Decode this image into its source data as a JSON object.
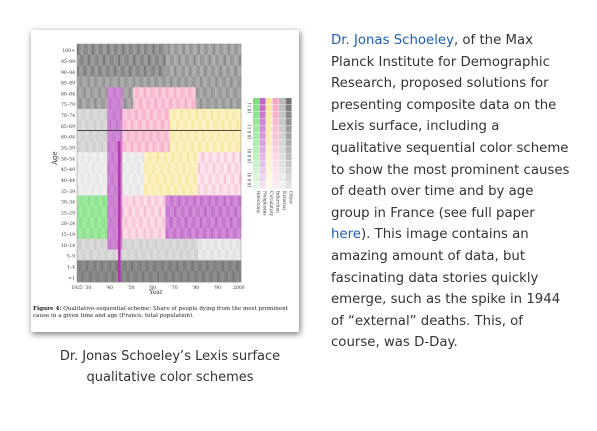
{
  "figure": {
    "age_labels": [
      "100+",
      "95–99",
      "90–94",
      "85–89",
      "80–84",
      "75–79",
      "70–74",
      "65–69",
      "60–64",
      "55–59",
      "50–54",
      "45–49",
      "40–44",
      "35–39",
      "30–34",
      "25–29",
      "20–24",
      "15–19",
      "10–14",
      "5–9",
      "1–4",
      "<1"
    ],
    "year_ticks": [
      "1925",
      "'30",
      "'40",
      "'50",
      "'60",
      "'70",
      "'80",
      "'90",
      "2000"
    ],
    "y_axis_title": "Age",
    "x_axis_title": "Year",
    "legend_ranges": [
      "[0.1]",
      "[0.0.1]",
      "[0.0.8]",
      "[0.0.4]"
    ],
    "legend_causes": [
      "Infections",
      "Neoplasms",
      "Circulatory",
      "Infarction",
      "External",
      "Other"
    ],
    "caption_bold": "Figure 4:",
    "caption_text": " Qualitative-sequential-scheme: Share of people dying from the most prominent cause in a given time and age (France, total population).",
    "cause_colors": {
      "infections": "#7ee07e",
      "neoplasms": "#c066c8",
      "circulatory": "#f7e79a",
      "infarction": "#f7a8c4",
      "external": "#bbbbbb",
      "other": "#777777"
    }
  },
  "image_caption": "Dr. Jonas Schoeley’s Lexis surface qualitative color schemes",
  "body": {
    "author_link": "Dr. Jonas Schoeley",
    "text_1": ", of the Max Planck Institute for Demographic Research, proposed solutions for presenting composite data on the Lexis surface, including a qualitative sequential color scheme to show the most prominent causes of death over time and by age group in France (see full paper ",
    "paper_link": "here",
    "text_2": "). This image contains an amazing amount of data, but fascinating data stories quickly emerge, such as the spike in 1944 of “external” deaths.  This, of course, was D-Day."
  }
}
